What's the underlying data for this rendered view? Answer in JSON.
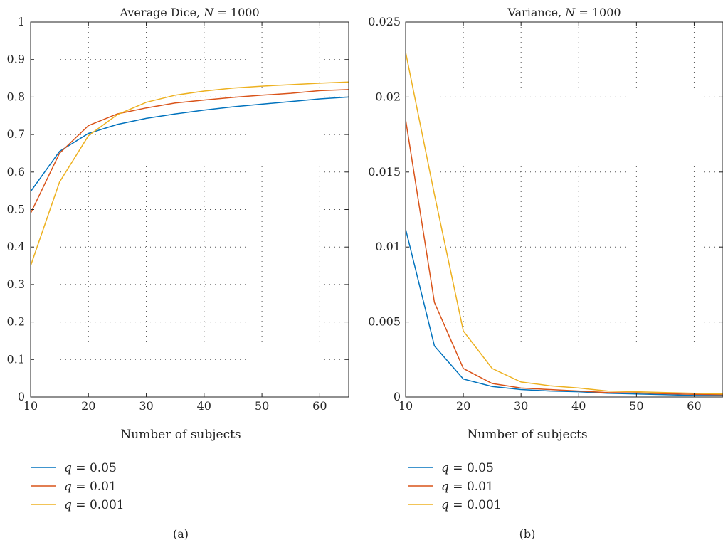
{
  "chart_data": [
    {
      "panel_label": "(a)",
      "type": "line",
      "title_text": "Average Dice, ",
      "title_var": "N",
      "title_value": " = 1000",
      "xlabel": "Number of subjects",
      "ylabel": "",
      "xlim": [
        10,
        65
      ],
      "ylim": [
        0,
        1
      ],
      "xticks": [
        10,
        20,
        30,
        40,
        50,
        60
      ],
      "yticks": [
        0,
        0.1,
        0.2,
        0.3,
        0.4,
        0.5,
        0.6,
        0.7,
        0.8,
        0.9,
        1
      ],
      "ytick_labels": [
        "0",
        "0.1",
        "0.2",
        "0.3",
        "0.4",
        "0.5",
        "0.6",
        "0.7",
        "0.8",
        "0.9",
        "1"
      ],
      "grid": true,
      "legend_position": "below",
      "x": [
        10,
        15,
        20,
        25,
        30,
        35,
        40,
        45,
        50,
        55,
        60,
        65
      ],
      "series": [
        {
          "name_var": "q",
          "name_value": " = 0.05",
          "color": "#0072bd",
          "values": [
            0.548,
            0.655,
            0.703,
            0.727,
            0.743,
            0.755,
            0.765,
            0.774,
            0.781,
            0.788,
            0.795,
            0.8
          ]
        },
        {
          "name_var": "q",
          "name_value": " = 0.01",
          "color": "#d95319",
          "values": [
            0.49,
            0.65,
            0.724,
            0.755,
            0.771,
            0.784,
            0.792,
            0.799,
            0.805,
            0.81,
            0.817,
            0.82
          ]
        },
        {
          "name_var": "q",
          "name_value": " = 0.001",
          "color": "#edb120",
          "values": [
            0.35,
            0.573,
            0.697,
            0.753,
            0.786,
            0.805,
            0.816,
            0.824,
            0.829,
            0.833,
            0.837,
            0.84
          ]
        }
      ]
    },
    {
      "panel_label": "(b)",
      "type": "line",
      "title_text": "Variance, ",
      "title_var": "N",
      "title_value": " = 1000",
      "xlabel": "Number of subjects",
      "ylabel": "",
      "xlim": [
        10,
        65
      ],
      "ylim": [
        0,
        0.025
      ],
      "xticks": [
        10,
        20,
        30,
        40,
        50,
        60
      ],
      "yticks": [
        0,
        0.005,
        0.01,
        0.015,
        0.02,
        0.025
      ],
      "ytick_labels": [
        "0",
        "0.005",
        "0.01",
        "0.015",
        "0.02",
        "0.025"
      ],
      "grid": true,
      "legend_position": "below",
      "x": [
        10,
        15,
        20,
        25,
        30,
        35,
        40,
        45,
        50,
        55,
        60,
        65
      ],
      "series": [
        {
          "name_var": "q",
          "name_value": " = 0.05",
          "color": "#0072bd",
          "values": [
            0.0112,
            0.0034,
            0.0012,
            0.0007,
            0.0005,
            0.0004,
            0.00035,
            0.00025,
            0.0002,
            0.00015,
            0.0001,
            0.0001
          ]
        },
        {
          "name_var": "q",
          "name_value": " = 0.01",
          "color": "#d95319",
          "values": [
            0.0185,
            0.0063,
            0.0019,
            0.0009,
            0.0006,
            0.0005,
            0.0004,
            0.0003,
            0.00027,
            0.00022,
            0.00018,
            0.00015
          ]
        },
        {
          "name_var": "q",
          "name_value": " = 0.001",
          "color": "#edb120",
          "values": [
            0.023,
            0.0135,
            0.0044,
            0.0019,
            0.001,
            0.00075,
            0.0006,
            0.0004,
            0.00035,
            0.0003,
            0.00025,
            0.0002
          ]
        }
      ]
    }
  ]
}
